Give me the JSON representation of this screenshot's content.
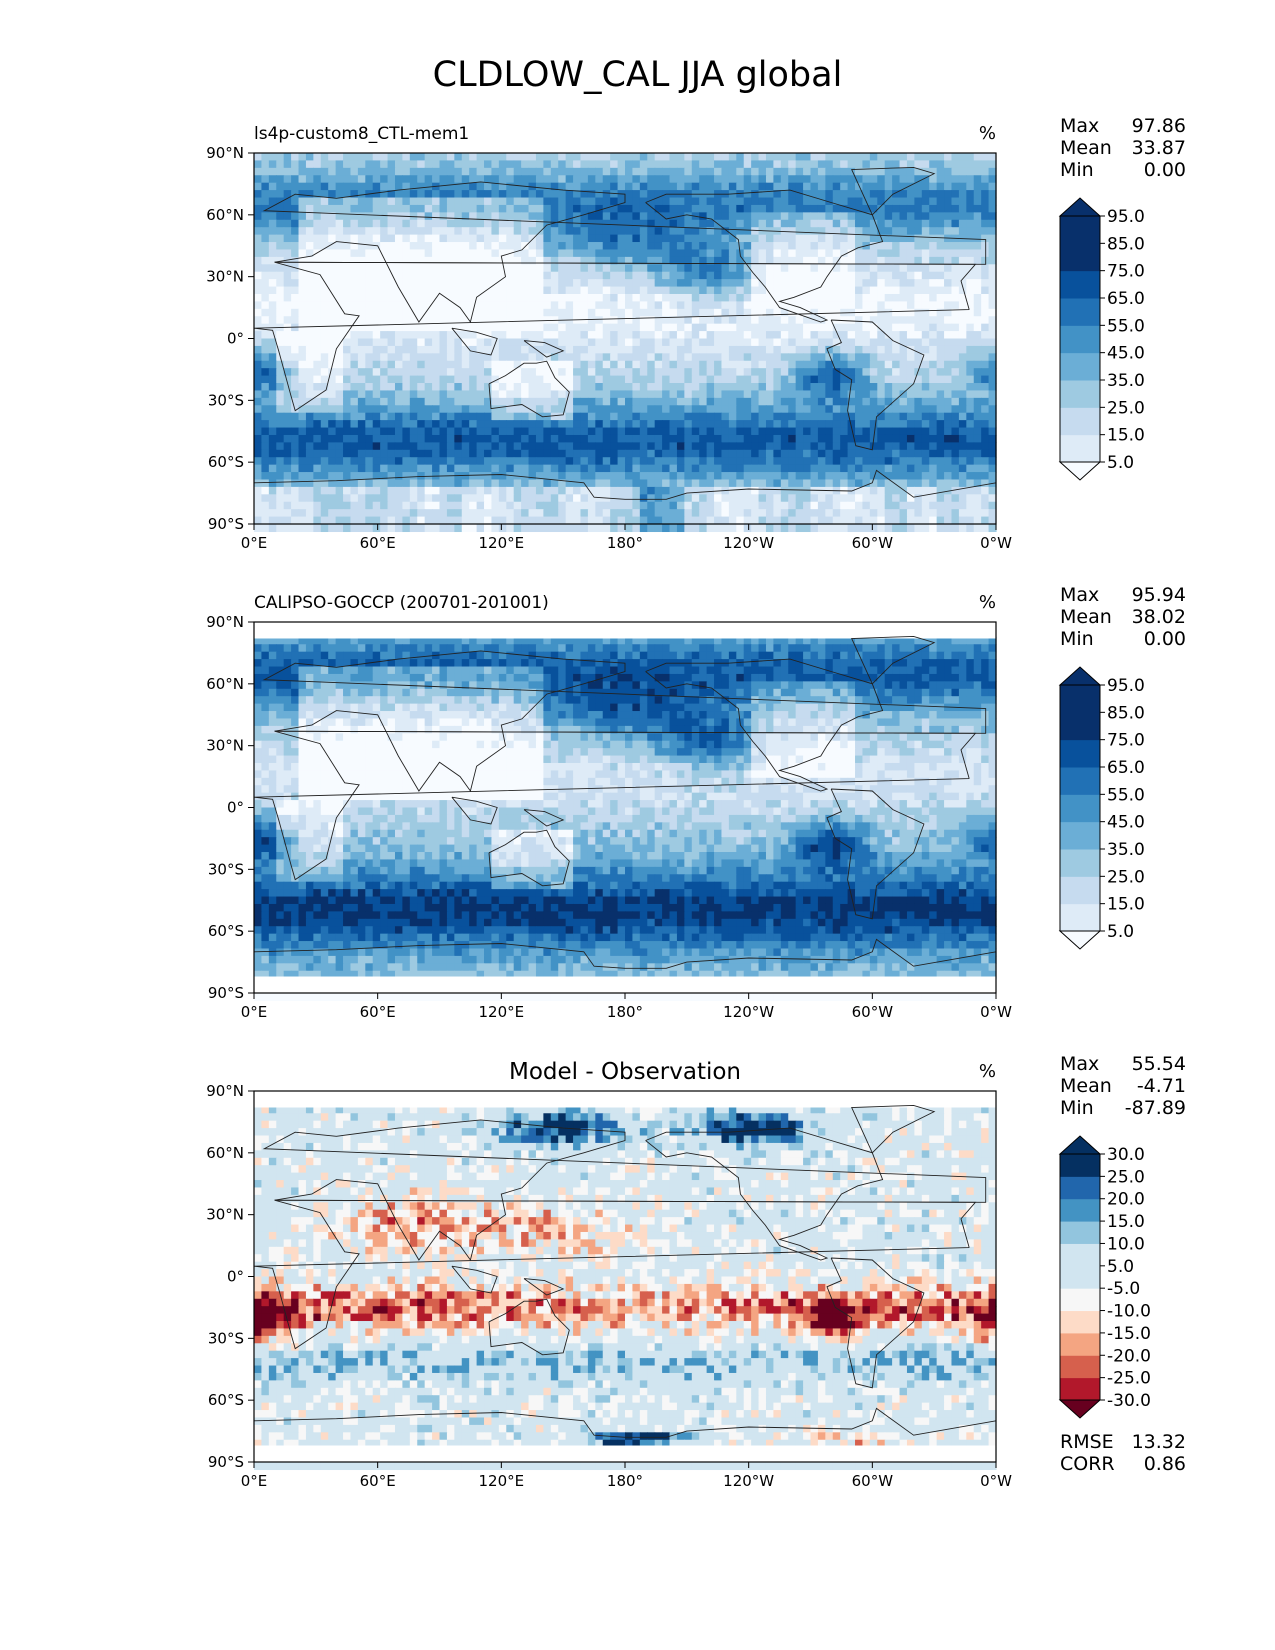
{
  "figure_title": "CLDLOW_CAL JJA global",
  "colors": {
    "abs_scale": [
      "#f7fbff",
      "#deebf7",
      "#c6dbef",
      "#9ecae1",
      "#6baed6",
      "#4292c6",
      "#2171b5",
      "#08519c",
      "#08306b"
    ],
    "diff_scale": [
      "#67001f",
      "#b2182b",
      "#d6604d",
      "#f4a582",
      "#fddbc7",
      "#f7f7f7",
      "#d1e5f0",
      "#92c5de",
      "#4393c3",
      "#2166ac",
      "#053061"
    ],
    "coast": "#222222"
  },
  "chart_data": [
    {
      "type": "heatmap",
      "title": "ls4p-custom8_CTL-mem1",
      "title_position": "left",
      "units": "%",
      "stats": [
        {
          "label": "Max",
          "value": "97.86"
        },
        {
          "label": "Mean",
          "value": "33.87"
        },
        {
          "label": "Min",
          "value": "0.00"
        }
      ],
      "xticks": [
        "0°E",
        "60°E",
        "120°E",
        "180°",
        "120°W",
        "60°W",
        "0°W"
      ],
      "yticks": [
        "90°N",
        "60°N",
        "30°N",
        "0°",
        "30°S",
        "60°S",
        "90°S"
      ],
      "xlim": [
        0,
        360
      ],
      "ylim": [
        -90,
        90
      ],
      "colorbar": {
        "ticks": [
          "95.0",
          "85.0",
          "75.0",
          "65.0",
          "55.0",
          "45.0",
          "35.0",
          "25.0",
          "15.0",
          "5.0"
        ],
        "levels": [
          5,
          15,
          25,
          35,
          45,
          55,
          65,
          75,
          85,
          95
        ],
        "extend": "both"
      },
      "scale": "abs",
      "variant": "model"
    },
    {
      "type": "heatmap",
      "title": "CALIPSO-GOCCP (200701-201001)",
      "title_position": "left",
      "units": "%",
      "stats": [
        {
          "label": "Max",
          "value": "95.94"
        },
        {
          "label": "Mean",
          "value": "38.02"
        },
        {
          "label": "Min",
          "value": "0.00"
        }
      ],
      "xticks": [
        "0°E",
        "60°E",
        "120°E",
        "180°",
        "120°W",
        "60°W",
        "0°W"
      ],
      "yticks": [
        "90°N",
        "60°N",
        "30°N",
        "0°",
        "30°S",
        "60°S",
        "90°S"
      ],
      "xlim": [
        0,
        360
      ],
      "ylim": [
        -90,
        90
      ],
      "colorbar": {
        "ticks": [
          "95.0",
          "85.0",
          "75.0",
          "65.0",
          "55.0",
          "45.0",
          "35.0",
          "25.0",
          "15.0",
          "5.0"
        ],
        "levels": [
          5,
          15,
          25,
          35,
          45,
          55,
          65,
          75,
          85,
          95
        ],
        "extend": "both"
      },
      "scale": "abs",
      "variant": "obs"
    },
    {
      "type": "heatmap",
      "title": "Model - Observation",
      "title_position": "center",
      "units": "%",
      "stats": [
        {
          "label": "Max",
          "value": "55.54"
        },
        {
          "label": "Mean",
          "value": "-4.71"
        },
        {
          "label": "Min",
          "value": "-87.89"
        }
      ],
      "xticks": [
        "0°E",
        "60°E",
        "120°E",
        "180°",
        "120°W",
        "60°W",
        "0°W"
      ],
      "yticks": [
        "90°N",
        "60°N",
        "30°N",
        "0°",
        "30°S",
        "60°S",
        "90°S"
      ],
      "xlim": [
        0,
        360
      ],
      "ylim": [
        -90,
        90
      ],
      "colorbar": {
        "ticks": [
          "30.0",
          "25.0",
          "20.0",
          "15.0",
          "10.0",
          "5.0",
          "-5.0",
          "-10.0",
          "-15.0",
          "-20.0",
          "-25.0",
          "-30.0"
        ],
        "levels": [
          -30,
          -25,
          -20,
          -15,
          -10,
          -5,
          5,
          10,
          15,
          20,
          25,
          30
        ],
        "extend": "both"
      },
      "scale": "diff",
      "variant": "diff",
      "metrics": [
        {
          "label": "RMSE",
          "value": "13.32"
        },
        {
          "label": "CORR",
          "value": "0.86"
        }
      ]
    }
  ]
}
